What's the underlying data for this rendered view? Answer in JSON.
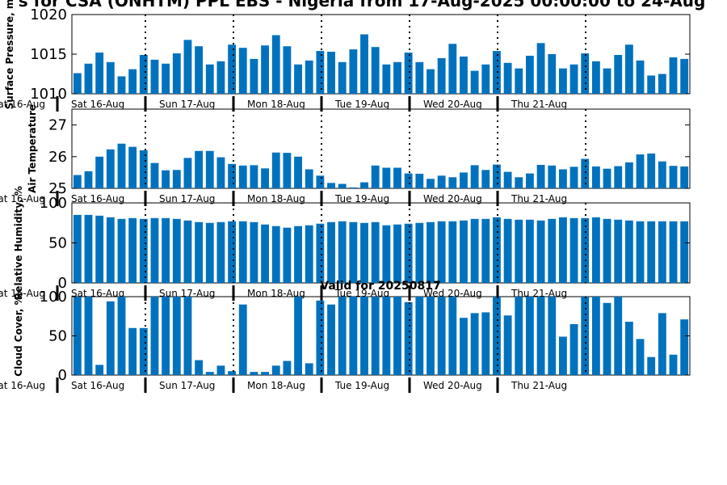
{
  "title": "s for CSA (ONHTM) PPL EBS - Nigeria from 17-Aug-2025 00:00:00 to 24-Aug",
  "valid_label": "Valid for 20250817",
  "day_labels": [
    "Sat 16-Aug",
    "Sun 17-Aug",
    "Mon 18-Aug",
    "Tue 19-Aug",
    "Wed 20-Aug",
    "Thu 21-Aug"
  ],
  "edge_day_label": "at 16-Aug",
  "bar_color": "#0072bd",
  "chart_data": [
    {
      "type": "bar",
      "ylabel": "Surface Pressure, m",
      "ylim": [
        1010,
        1020
      ],
      "yticks": [
        1010,
        1015,
        1020
      ],
      "grid": false,
      "values": [
        1012.6,
        1013.8,
        1015.2,
        1014.0,
        1012.2,
        1013.1,
        1014.9,
        1014.3,
        1013.8,
        1015.1,
        1016.8,
        1016.0,
        1013.7,
        1014.1,
        1016.2,
        1015.8,
        1014.4,
        1016.1,
        1017.4,
        1016.0,
        1013.7,
        1014.2,
        1015.4,
        1015.3,
        1014.0,
        1015.6,
        1017.5,
        1015.9,
        1013.7,
        1014.0,
        1015.2,
        1014.0,
        1013.1,
        1014.5,
        1016.3,
        1014.7,
        1012.9,
        1013.7,
        1015.4,
        1013.9,
        1013.2,
        1014.8,
        1016.4,
        1015.0,
        1013.2,
        1013.7,
        1015.1,
        1014.1,
        1013.2,
        1014.9,
        1016.2,
        1014.2,
        1012.3,
        1012.5,
        1014.6,
        1014.4
      ]
    },
    {
      "type": "bar",
      "ylabel": "Air Temperature",
      "ylim": [
        25,
        27.5
      ],
      "yticks": [
        25,
        26,
        27
      ],
      "grid": false,
      "values": [
        25.42,
        25.54,
        26.0,
        26.23,
        26.41,
        26.31,
        26.2,
        25.8,
        25.57,
        25.58,
        25.96,
        26.18,
        26.18,
        25.98,
        25.77,
        25.72,
        25.73,
        25.63,
        26.13,
        26.12,
        26.0,
        25.6,
        25.4,
        25.17,
        25.14,
        25.03,
        25.19,
        25.72,
        25.65,
        25.65,
        25.47,
        25.46,
        25.3,
        25.4,
        25.35,
        25.5,
        25.73,
        25.58,
        25.75,
        25.52,
        25.35,
        25.47,
        25.74,
        25.72,
        25.6,
        25.68,
        25.93,
        25.69,
        25.62,
        25.7,
        25.82,
        26.07,
        26.1,
        25.85,
        25.71,
        25.69
      ]
    },
    {
      "type": "bar",
      "ylabel": "Relative Humidity, %",
      "ylim": [
        0,
        100
      ],
      "yticks": [
        0,
        50,
        100
      ],
      "grid": false,
      "values": [
        85,
        85,
        84,
        82,
        80,
        81,
        80,
        81,
        81,
        80,
        78,
        76,
        75,
        76,
        77,
        77,
        76,
        73,
        71,
        69,
        71,
        72,
        74,
        76,
        77,
        76,
        75,
        76,
        72,
        73,
        74,
        75,
        76,
        77,
        77,
        78,
        80,
        80,
        82,
        80,
        79,
        79,
        78,
        80,
        82,
        81,
        81,
        82,
        80,
        79,
        78,
        77,
        77,
        77,
        77,
        77
      ]
    },
    {
      "type": "bar",
      "ylabel": "Cloud Cover, %",
      "ylim": [
        0,
        100
      ],
      "yticks": [
        0,
        50,
        100
      ],
      "grid": false,
      "values": [
        100,
        100,
        13,
        94,
        100,
        60,
        60,
        100,
        100,
        100,
        100,
        19,
        4,
        12,
        5,
        90,
        4,
        4,
        12,
        18,
        100,
        15,
        95,
        90,
        100,
        100,
        100,
        100,
        100,
        100,
        93,
        100,
        100,
        100,
        100,
        73,
        79,
        80,
        100,
        76,
        100,
        100,
        100,
        100,
        49,
        65,
        100,
        100,
        92,
        100,
        68,
        46,
        23,
        79,
        26,
        71
      ]
    }
  ]
}
